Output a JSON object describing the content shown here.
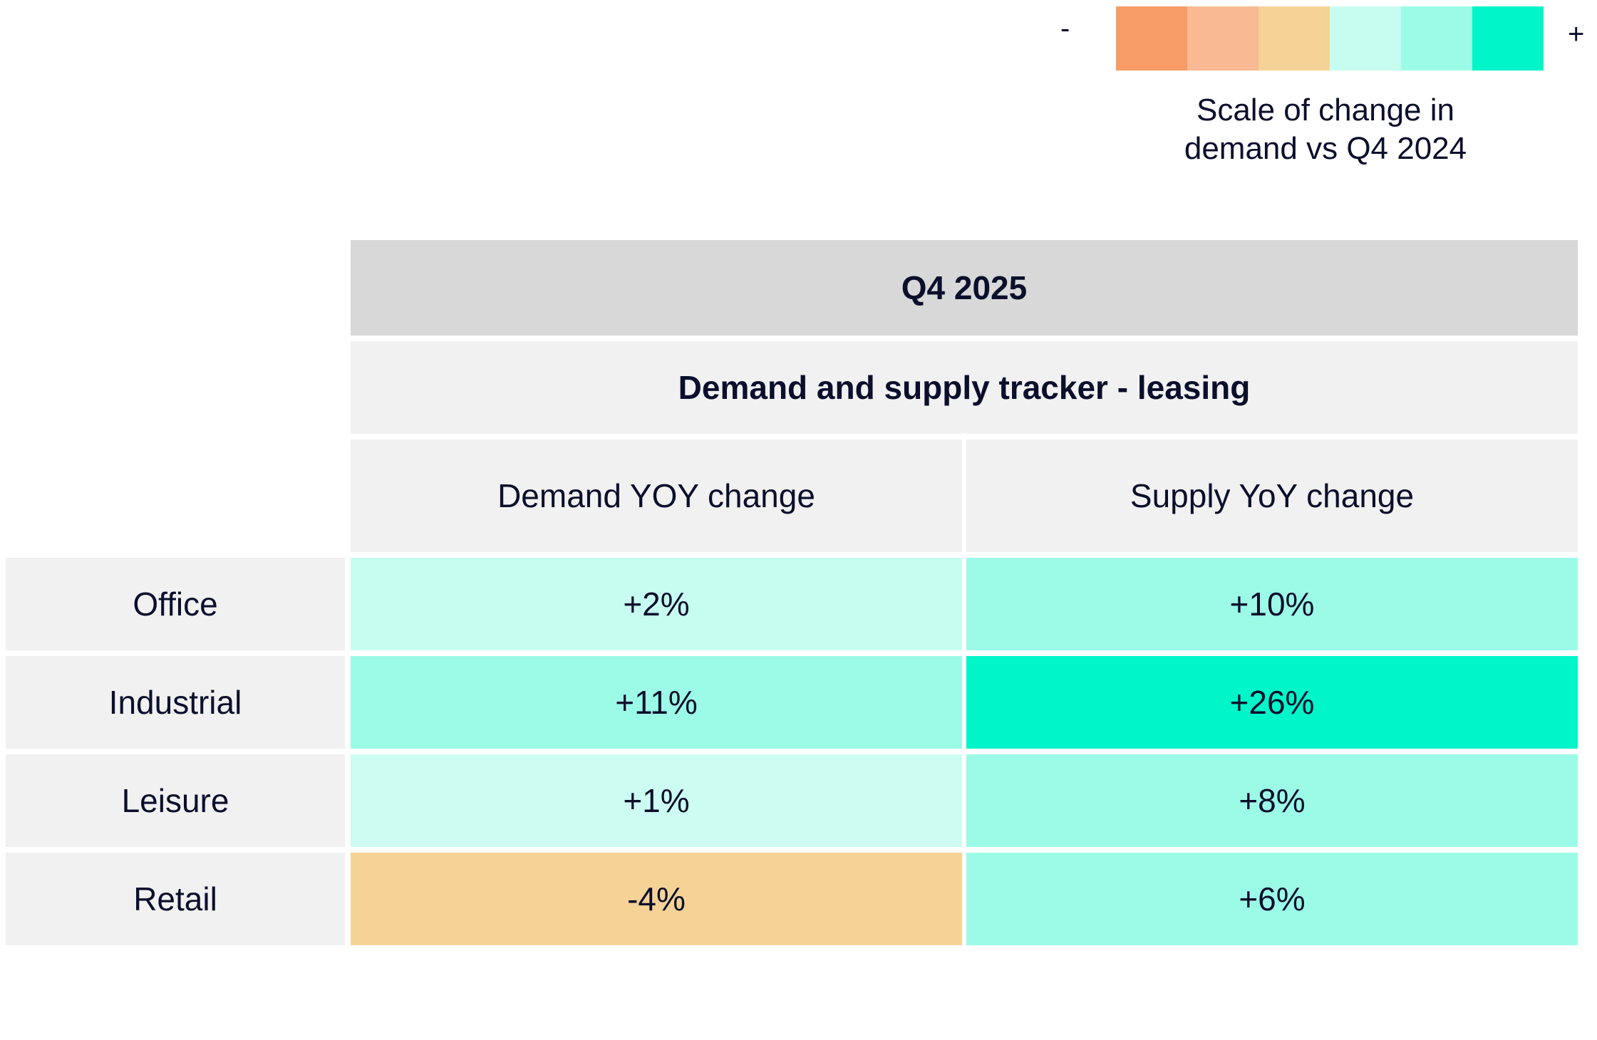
{
  "legend": {
    "minus": "-",
    "plus": "+",
    "title_line1": "Scale of change in",
    "title_line2": "demand vs Q4 2024",
    "colors": [
      "#f79c66",
      "#f8b993",
      "#f5d296",
      "#c7fdf0",
      "#9cfbe7",
      "#00f5c8"
    ]
  },
  "chart_data": {
    "type": "table",
    "title": "Q4 2025",
    "subtitle": "Demand and supply tracker - leasing",
    "columns": [
      "Demand YOY change",
      "Supply YoY change"
    ],
    "rows": [
      {
        "label": "Office",
        "values": [
          "+2%",
          "+10%"
        ],
        "numbers": [
          2,
          10
        ],
        "colors": [
          "#c7fdf0",
          "#9cfbe7"
        ]
      },
      {
        "label": "Industrial",
        "values": [
          "+11%",
          "+26%"
        ],
        "numbers": [
          11,
          26
        ],
        "colors": [
          "#9cfbe7",
          "#00f5c8"
        ]
      },
      {
        "label": "Leisure",
        "values": [
          "+1%",
          "+8%"
        ],
        "numbers": [
          1,
          8
        ],
        "colors": [
          "#cdfdf2",
          "#9cfbe7"
        ]
      },
      {
        "label": "Retail",
        "values": [
          "-4%",
          "+6%"
        ],
        "numbers": [
          -4,
          6
        ],
        "colors": [
          "#f5d296",
          "#9cfbe7"
        ]
      }
    ]
  }
}
